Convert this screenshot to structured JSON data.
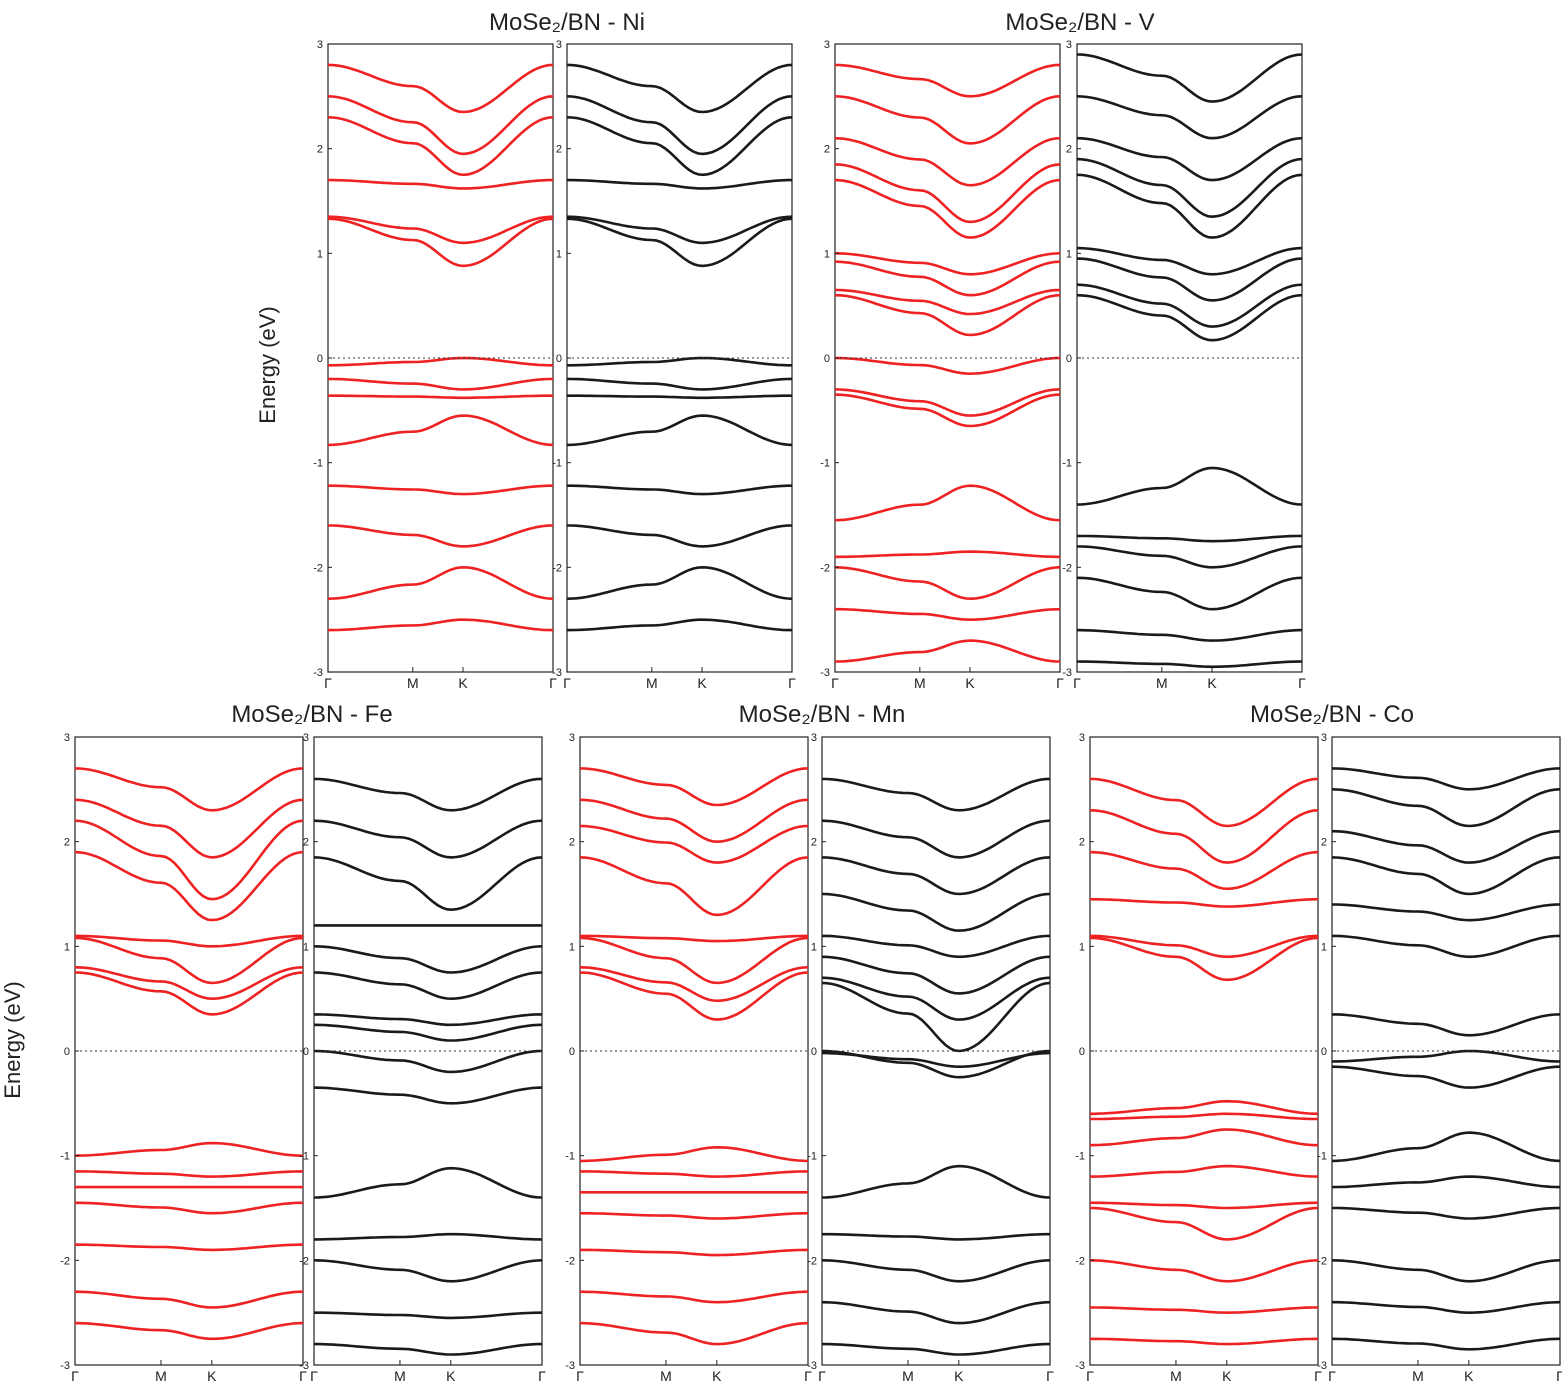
{
  "figure": {
    "ylabel": "Energy (eV)",
    "colors": {
      "spin_up": "#ee2222",
      "spin_down": "#1a1a1a",
      "fermi": "#333333",
      "frame": "#222222"
    },
    "fermi_level_label": "0"
  },
  "chart_data": [
    {
      "type": "line",
      "title": "MoSe₂/BN - Ni",
      "ylabel": "Energy (eV)",
      "ylim": [
        -3,
        3
      ],
      "y_ticks": [
        "3",
        "2",
        "1",
        "0",
        "-1",
        "-2",
        "-3"
      ],
      "x_ticks": [
        "Γ",
        "M",
        "K",
        "Γ"
      ],
      "x_tick_positions": [
        0,
        0.377,
        0.6,
        1
      ],
      "fermi_level": 0,
      "series": [
        {
          "name": "spin up",
          "color": "#ee2222",
          "bands": [
            {
              "gamma": -0.07,
              "k": 0.0
            },
            {
              "gamma": -0.2,
              "k": -0.3
            },
            {
              "gamma": -0.36,
              "k": -0.38
            },
            {
              "gamma": -0.83,
              "k": -0.55
            },
            {
              "gamma": -1.22,
              "k": -1.3
            },
            {
              "gamma": -1.6,
              "k": -1.8
            },
            {
              "gamma": -2.3,
              "k": -2.0
            },
            {
              "gamma": -2.6,
              "k": -2.5
            },
            {
              "gamma": 1.33,
              "k": 0.88
            },
            {
              "gamma": 1.35,
              "k": 1.1
            },
            {
              "gamma": 1.7,
              "k": 1.62
            },
            {
              "gamma": 2.3,
              "k": 1.75
            },
            {
              "gamma": 2.5,
              "k": 1.95
            },
            {
              "gamma": 2.8,
              "k": 2.35
            }
          ]
        },
        {
          "name": "spin down",
          "color": "#1a1a1a",
          "bands": [
            {
              "gamma": -0.07,
              "k": 0.0
            },
            {
              "gamma": -0.2,
              "k": -0.3
            },
            {
              "gamma": -0.36,
              "k": -0.38
            },
            {
              "gamma": -0.83,
              "k": -0.55
            },
            {
              "gamma": -1.22,
              "k": -1.3
            },
            {
              "gamma": -1.6,
              "k": -1.8
            },
            {
              "gamma": -2.3,
              "k": -2.0
            },
            {
              "gamma": -2.6,
              "k": -2.5
            },
            {
              "gamma": 1.33,
              "k": 0.88
            },
            {
              "gamma": 1.35,
              "k": 1.1
            },
            {
              "gamma": 1.7,
              "k": 1.62
            },
            {
              "gamma": 2.3,
              "k": 1.75
            },
            {
              "gamma": 2.5,
              "k": 1.95
            },
            {
              "gamma": 2.8,
              "k": 2.35
            }
          ]
        }
      ]
    },
    {
      "type": "line",
      "title": "MoSe₂/BN - V",
      "ylabel": "Energy (eV)",
      "ylim": [
        -3,
        3
      ],
      "y_ticks": [
        "3",
        "2",
        "1",
        "0",
        "-1",
        "-2",
        "-3"
      ],
      "x_ticks": [
        "Γ",
        "M",
        "K",
        "Γ"
      ],
      "x_tick_positions": [
        0,
        0.377,
        0.6,
        1
      ],
      "fermi_level": 0,
      "series": [
        {
          "name": "spin up",
          "color": "#ee2222",
          "bands": [
            {
              "gamma": 0.0,
              "k": -0.15
            },
            {
              "gamma": -0.3,
              "k": -0.55
            },
            {
              "gamma": -0.35,
              "k": -0.65
            },
            {
              "gamma": -1.55,
              "k": -1.22
            },
            {
              "gamma": -1.9,
              "k": -1.85
            },
            {
              "gamma": -2.0,
              "k": -2.3
            },
            {
              "gamma": -2.4,
              "k": -2.5
            },
            {
              "gamma": -2.9,
              "k": -2.7
            },
            {
              "gamma": 0.6,
              "k": 0.22
            },
            {
              "gamma": 0.65,
              "k": 0.42
            },
            {
              "gamma": 0.92,
              "k": 0.6
            },
            {
              "gamma": 1.0,
              "k": 0.8
            },
            {
              "gamma": 1.7,
              "k": 1.15
            },
            {
              "gamma": 1.85,
              "k": 1.3
            },
            {
              "gamma": 2.1,
              "k": 1.65
            },
            {
              "gamma": 2.5,
              "k": 2.05
            },
            {
              "gamma": 2.8,
              "k": 2.5
            }
          ]
        },
        {
          "name": "spin down",
          "color": "#1a1a1a",
          "bands": [
            {
              "gamma": -1.4,
              "k": -1.05
            },
            {
              "gamma": -1.7,
              "k": -1.75
            },
            {
              "gamma": -1.8,
              "k": -2.0
            },
            {
              "gamma": -2.1,
              "k": -2.4
            },
            {
              "gamma": -2.6,
              "k": -2.7
            },
            {
              "gamma": -2.9,
              "k": -2.95
            },
            {
              "gamma": 0.6,
              "k": 0.17
            },
            {
              "gamma": 0.7,
              "k": 0.3
            },
            {
              "gamma": 0.95,
              "k": 0.55
            },
            {
              "gamma": 1.05,
              "k": 0.8
            },
            {
              "gamma": 1.75,
              "k": 1.15
            },
            {
              "gamma": 1.9,
              "k": 1.35
            },
            {
              "gamma": 2.1,
              "k": 1.7
            },
            {
              "gamma": 2.5,
              "k": 2.1
            },
            {
              "gamma": 2.9,
              "k": 2.45
            }
          ]
        }
      ]
    },
    {
      "type": "line",
      "title": "MoSe₂/BN - Fe",
      "ylabel": "Energy (eV)",
      "ylim": [
        -3,
        3
      ],
      "y_ticks": [
        "3",
        "2",
        "1",
        "0",
        "-1",
        "-2",
        "-3"
      ],
      "x_ticks": [
        "Γ",
        "M",
        "K",
        "Γ"
      ],
      "x_tick_positions": [
        0,
        0.377,
        0.6,
        1
      ],
      "fermi_level": 0,
      "series": [
        {
          "name": "spin up",
          "color": "#ee2222",
          "bands": [
            {
              "gamma": -1.0,
              "k": -0.88
            },
            {
              "gamma": -1.15,
              "k": -1.2
            },
            {
              "gamma": -1.3,
              "k": -1.3
            },
            {
              "gamma": -1.45,
              "k": -1.55
            },
            {
              "gamma": -1.85,
              "k": -1.9
            },
            {
              "gamma": -2.3,
              "k": -2.45
            },
            {
              "gamma": -2.6,
              "k": -2.75
            },
            {
              "gamma": 0.75,
              "k": 0.35
            },
            {
              "gamma": 0.8,
              "k": 0.5
            },
            {
              "gamma": 1.08,
              "k": 0.65
            },
            {
              "gamma": 1.1,
              "k": 1.0
            },
            {
              "gamma": 1.9,
              "k": 1.25
            },
            {
              "gamma": 2.2,
              "k": 1.45
            },
            {
              "gamma": 2.4,
              "k": 1.85
            },
            {
              "gamma": 2.7,
              "k": 2.3
            }
          ]
        },
        {
          "name": "spin down",
          "color": "#1a1a1a",
          "bands": [
            {
              "gamma": 0.0,
              "k": -0.2
            },
            {
              "gamma": -0.35,
              "k": -0.5
            },
            {
              "gamma": -1.4,
              "k": -1.12
            },
            {
              "gamma": -1.8,
              "k": -1.75
            },
            {
              "gamma": -2.0,
              "k": -2.2
            },
            {
              "gamma": -2.5,
              "k": -2.55
            },
            {
              "gamma": -2.8,
              "k": -2.9
            },
            {
              "gamma": 0.25,
              "k": 0.1
            },
            {
              "gamma": 0.35,
              "k": 0.25
            },
            {
              "gamma": 0.75,
              "k": 0.5
            },
            {
              "gamma": 1.0,
              "k": 0.75
            },
            {
              "gamma": 1.2,
              "k": 1.2
            },
            {
              "gamma": 1.85,
              "k": 1.35
            },
            {
              "gamma": 2.2,
              "k": 1.85
            },
            {
              "gamma": 2.6,
              "k": 2.3
            }
          ]
        }
      ]
    },
    {
      "type": "line",
      "title": "MoSe₂/BN - Mn",
      "ylabel": "Energy (eV)",
      "ylim": [
        -3,
        3
      ],
      "y_ticks": [
        "3",
        "2",
        "1",
        "0",
        "-1",
        "-2",
        "-3"
      ],
      "x_ticks": [
        "Γ",
        "M",
        "K",
        "Γ"
      ],
      "x_tick_positions": [
        0,
        0.377,
        0.6,
        1
      ],
      "fermi_level": 0,
      "series": [
        {
          "name": "spin up",
          "color": "#ee2222",
          "bands": [
            {
              "gamma": -1.05,
              "k": -0.92
            },
            {
              "gamma": -1.15,
              "k": -1.2
            },
            {
              "gamma": -1.35,
              "k": -1.35
            },
            {
              "gamma": -1.55,
              "k": -1.6
            },
            {
              "gamma": -1.9,
              "k": -1.95
            },
            {
              "gamma": -2.3,
              "k": -2.4
            },
            {
              "gamma": -2.6,
              "k": -2.8
            },
            {
              "gamma": 0.75,
              "k": 0.3
            },
            {
              "gamma": 0.8,
              "k": 0.48
            },
            {
              "gamma": 1.08,
              "k": 0.65
            },
            {
              "gamma": 1.1,
              "k": 1.05
            },
            {
              "gamma": 1.85,
              "k": 1.3
            },
            {
              "gamma": 2.15,
              "k": 1.8
            },
            {
              "gamma": 2.4,
              "k": 2.0
            },
            {
              "gamma": 2.7,
              "k": 2.35
            }
          ]
        },
        {
          "name": "spin down",
          "color": "#1a1a1a",
          "bands": [
            {
              "gamma": 0.0,
              "k": -0.25
            },
            {
              "gamma": -0.02,
              "k": -0.15
            },
            {
              "gamma": -1.4,
              "k": -1.1
            },
            {
              "gamma": -1.75,
              "k": -1.8
            },
            {
              "gamma": -2.0,
              "k": -2.2
            },
            {
              "gamma": -2.4,
              "k": -2.6
            },
            {
              "gamma": -2.8,
              "k": -2.9
            },
            {
              "gamma": 0.65,
              "k": 0.0
            },
            {
              "gamma": 0.7,
              "k": 0.3
            },
            {
              "gamma": 0.9,
              "k": 0.55
            },
            {
              "gamma": 1.1,
              "k": 0.9
            },
            {
              "gamma": 1.5,
              "k": 1.15
            },
            {
              "gamma": 1.85,
              "k": 1.5
            },
            {
              "gamma": 2.2,
              "k": 1.85
            },
            {
              "gamma": 2.6,
              "k": 2.3
            }
          ]
        }
      ]
    },
    {
      "type": "line",
      "title": "MoSe₂/BN - Co",
      "ylabel": "Energy (eV)",
      "ylim": [
        -3,
        3
      ],
      "y_ticks": [
        "3",
        "2",
        "1",
        "0",
        "-1",
        "-2",
        "-3"
      ],
      "x_ticks": [
        "Γ",
        "M",
        "K",
        "Γ"
      ],
      "x_tick_positions": [
        0,
        0.377,
        0.6,
        1
      ],
      "fermi_level": 0,
      "series": [
        {
          "name": "spin up",
          "color": "#ee2222",
          "bands": [
            {
              "gamma": -0.6,
              "k": -0.48
            },
            {
              "gamma": -0.65,
              "k": -0.6
            },
            {
              "gamma": -0.9,
              "k": -0.75
            },
            {
              "gamma": -1.2,
              "k": -1.1
            },
            {
              "gamma": -1.45,
              "k": -1.5
            },
            {
              "gamma": -1.5,
              "k": -1.8
            },
            {
              "gamma": -2.0,
              "k": -2.2
            },
            {
              "gamma": -2.45,
              "k": -2.5
            },
            {
              "gamma": -2.75,
              "k": -2.8
            },
            {
              "gamma": 1.08,
              "k": 0.68
            },
            {
              "gamma": 1.1,
              "k": 0.9
            },
            {
              "gamma": 1.45,
              "k": 1.38
            },
            {
              "gamma": 1.9,
              "k": 1.55
            },
            {
              "gamma": 2.3,
              "k": 1.8
            },
            {
              "gamma": 2.6,
              "k": 2.15
            }
          ]
        },
        {
          "name": "spin down",
          "color": "#1a1a1a",
          "bands": [
            {
              "gamma": 0.35,
              "k": 0.15
            },
            {
              "gamma": -0.1,
              "k": 0.0
            },
            {
              "gamma": -0.15,
              "k": -0.35
            },
            {
              "gamma": -1.05,
              "k": -0.78
            },
            {
              "gamma": -1.3,
              "k": -1.2
            },
            {
              "gamma": -1.5,
              "k": -1.6
            },
            {
              "gamma": -2.0,
              "k": -2.2
            },
            {
              "gamma": -2.4,
              "k": -2.5
            },
            {
              "gamma": -2.75,
              "k": -2.85
            },
            {
              "gamma": 1.1,
              "k": 0.9
            },
            {
              "gamma": 1.4,
              "k": 1.25
            },
            {
              "gamma": 1.85,
              "k": 1.5
            },
            {
              "gamma": 2.1,
              "k": 1.8
            },
            {
              "gamma": 2.5,
              "k": 2.15
            },
            {
              "gamma": 2.7,
              "k": 2.5
            }
          ]
        }
      ]
    }
  ]
}
